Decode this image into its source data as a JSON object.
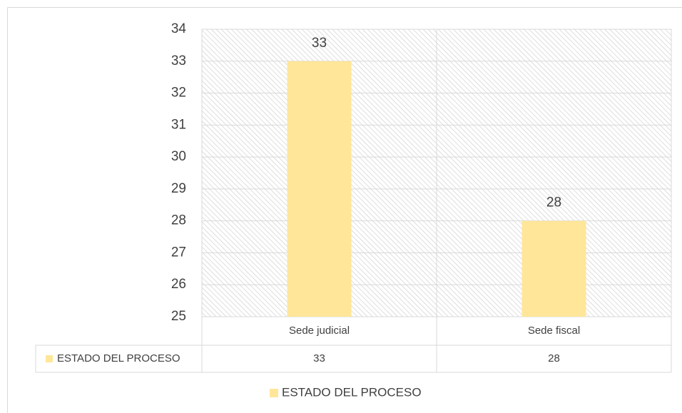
{
  "chart_data": {
    "type": "bar",
    "categories": [
      "Sede judicial",
      "Sede fiscal"
    ],
    "series": [
      {
        "name": "ESTADO DEL PROCESO",
        "color": "#ffe699",
        "values": [
          33,
          28
        ]
      }
    ],
    "ylim": [
      25,
      34
    ],
    "yticks": [
      25,
      26,
      27,
      28,
      29,
      30,
      31,
      32,
      33,
      34
    ],
    "grid": true,
    "legend": "bottom",
    "data_table": true
  }
}
